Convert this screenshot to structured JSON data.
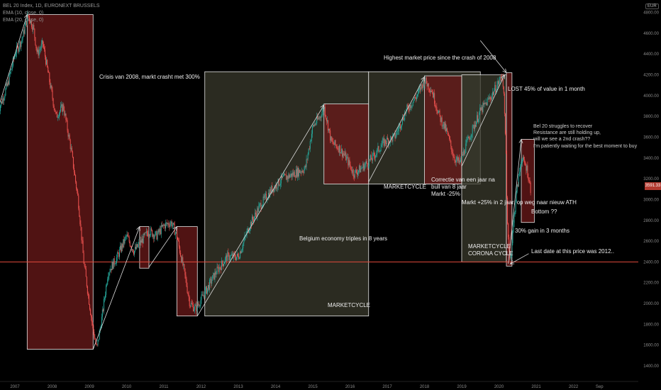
{
  "legend": {
    "symbol": "BEL 20 Index, 1D, EURONEXT BRUSSELS",
    "ema10": "EMA (10, close, 0)",
    "ema20": "EMA (20, close, 0)"
  },
  "currency": "EUR",
  "last_price_label": "3591.33",
  "colors": {
    "background": "#000000",
    "axis_text": "#8a8a8a",
    "up": "#26a69a",
    "down": "#ef5350",
    "box_red": "#6b1a1a",
    "box_green": "#3a3a2c",
    "box_border": "#e6e6e6",
    "horizontal_line": "#e24a3b"
  },
  "chart_data": {
    "type": "line",
    "title": "",
    "x_ticks": [
      "2007",
      "2008",
      "2009",
      "2010",
      "2011",
      "2012",
      "2013",
      "2014",
      "2015",
      "2016",
      "2017",
      "2018",
      "2019",
      "2020",
      "2021",
      "2022",
      "Sep"
    ],
    "y_ticks": [
      1400,
      1600,
      1800,
      2000,
      2200,
      2400,
      2600,
      2800,
      3000,
      3200,
      3400,
      3600,
      3800,
      4000,
      4200,
      4400,
      4600,
      4800
    ],
    "ylim": [
      1250,
      4920
    ],
    "horizontal_line": 2400,
    "series": [
      {
        "name": "",
        "x": [
          2006.55,
          2006.8,
          2007.0,
          2007.2,
          2007.35,
          2007.5,
          2007.6,
          2007.75,
          2007.9,
          2008.1,
          2008.3,
          2008.5,
          2008.7,
          2008.85,
          2009.0,
          2009.1,
          2009.2,
          2009.35,
          2009.5,
          2009.75,
          2010.0,
          2010.2,
          2010.4,
          2010.6,
          2010.8,
          2011.0,
          2011.2,
          2011.35,
          2011.55,
          2011.7,
          2011.85,
          2012.1,
          2012.4,
          2012.7,
          2013.0,
          2013.3,
          2013.6,
          2013.9,
          2014.2,
          2014.5,
          2014.8,
          2015.0,
          2015.2,
          2015.3,
          2015.5,
          2015.7,
          2015.9,
          2016.1,
          2016.3,
          2016.6,
          2016.9,
          2017.2,
          2017.5,
          2017.8,
          2018.0,
          2018.2,
          2018.4,
          2018.6,
          2018.8,
          2018.95,
          2019.2,
          2019.5,
          2019.8,
          2020.1,
          2020.18,
          2020.22,
          2020.3,
          2020.45,
          2020.6,
          2020.75,
          2020.85
        ],
        "y": [
          3850,
          4100,
          4400,
          4550,
          4780,
          4650,
          4400,
          4500,
          4200,
          3800,
          3900,
          3500,
          3000,
          2400,
          2000,
          1750,
          1560,
          1900,
          2300,
          2450,
          2650,
          2500,
          2600,
          2700,
          2650,
          2750,
          2780,
          2650,
          2300,
          2000,
          1950,
          2100,
          2300,
          2450,
          2450,
          2750,
          2950,
          3100,
          3200,
          3250,
          3300,
          3700,
          3800,
          3900,
          3550,
          3500,
          3400,
          3250,
          3300,
          3400,
          3550,
          3600,
          3850,
          4000,
          4150,
          4050,
          3800,
          3650,
          3400,
          3350,
          3600,
          3850,
          4000,
          4200,
          3600,
          2800,
          2400,
          3000,
          3400,
          3300,
          3100
        ]
      }
    ],
    "annotations": [
      "Crisis van 2008, markt crasht met 300%",
      "Highest market price since the crash of 2008",
      "LOST 45% of value in 1 month",
      "Bel 20 struggles to recover",
      "Resistance are still holding up,",
      "will we see a 2nd crash??",
      "I'm patiently waiting for the best moment to buy",
      "Correctie van een jaar na",
      "bull van 8 jaar",
      "Markt -25%",
      "MARKETCYCLE",
      "Markt +25% in 2 jaar, op weg naar nieuw ATH",
      "Bottom ??",
      "Belgium economy triples in 8 years",
      "30% gain in 3 months",
      "MARKETCYCLE",
      "CORONA CYCLE",
      "Last date at this price was 2012..",
      "MARKETCYCLE"
    ]
  }
}
